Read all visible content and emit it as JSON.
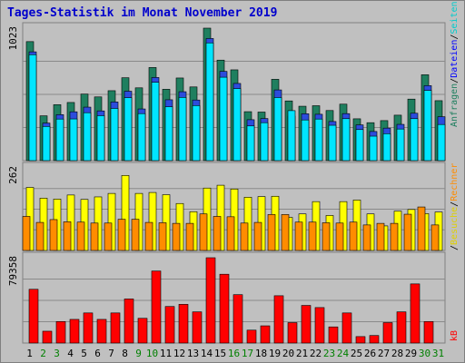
{
  "title": "Tages-Statistik im Monat November 2019",
  "chart_data": [
    {
      "type": "bar",
      "panel": "top",
      "categories": [
        "1",
        "2",
        "3",
        "4",
        "5",
        "6",
        "7",
        "8",
        "9",
        "10",
        "11",
        "12",
        "13",
        "14",
        "15",
        "16",
        "17",
        "18",
        "19",
        "20",
        "21",
        "22",
        "23",
        "24",
        "25",
        "26",
        "27",
        "28",
        "29",
        "30",
        "31"
      ],
      "ylim": [
        0,
        1023
      ],
      "ytick_label": "1023",
      "series": [
        {
          "name": "Anfragen",
          "color": "#1f7f5f",
          "values": [
            919,
            346,
            432,
            449,
            514,
            492,
            540,
            640,
            562,
            719,
            551,
            638,
            569,
            1023,
            776,
            701,
            378,
            375,
            628,
            461,
            420,
            424,
            387,
            436,
            323,
            293,
            309,
            351,
            475,
            663,
            463
          ]
        },
        {
          "name": "Dateien",
          "color": "#2c4cdc",
          "values": [
            861,
            311,
            376,
            398,
            434,
            405,
            474,
            557,
            420,
            663,
            491,
            553,
            489,
            964,
            710,
            617,
            337,
            346,
            567,
            365,
            383,
            379,
            323,
            384,
            297,
            246,
            272,
            301,
            387,
            600,
            360
          ]
        },
        {
          "name": "Seiten",
          "color": "#00e5ff",
          "values": [
            860,
            306,
            363,
            364,
            412,
            389,
            445,
            528,
            405,
            647,
            458,
            530,
            467,
            951,
            686,
            598,
            310,
            335,
            529,
            428,
            356,
            363,
            315,
            366,
            282,
            231,
            250,
            286,
            366,
            584,
            321
          ]
        }
      ]
    },
    {
      "type": "bar",
      "panel": "middle",
      "categories": [
        "1",
        "2",
        "3",
        "4",
        "5",
        "6",
        "7",
        "8",
        "9",
        "10",
        "11",
        "12",
        "13",
        "14",
        "15",
        "16",
        "17",
        "18",
        "19",
        "20",
        "21",
        "22",
        "23",
        "24",
        "25",
        "26",
        "27",
        "28",
        "29",
        "30",
        "31"
      ],
      "ylim": [
        0,
        262
      ],
      "ytick_label": "262",
      "series": [
        {
          "name": "Besuche",
          "color": "#ffff00",
          "values": [
            200,
            166,
            163,
            176,
            162,
            170,
            181,
            238,
            181,
            184,
            177,
            149,
            123,
            198,
            207,
            195,
            169,
            171,
            172,
            105,
            116,
            155,
            111,
            155,
            160,
            116,
            78,
            125,
            130,
            117,
            122
          ]
        },
        {
          "name": "Rechner",
          "color": "#ff8c00",
          "values": [
            108,
            89,
            98,
            91,
            90,
            87,
            87,
            99,
            99,
            89,
            88,
            86,
            86,
            116,
            108,
            107,
            87,
            89,
            114,
            114,
            90,
            90,
            88,
            87,
            90,
            81,
            86,
            86,
            115,
            138,
            81
          ]
        }
      ]
    },
    {
      "type": "bar",
      "panel": "bottom",
      "categories": [
        "1",
        "2",
        "3",
        "4",
        "5",
        "6",
        "7",
        "8",
        "9",
        "10",
        "11",
        "12",
        "13",
        "14",
        "15",
        "16",
        "17",
        "18",
        "19",
        "20",
        "21",
        "22",
        "23",
        "24",
        "25",
        "26",
        "27",
        "28",
        "29",
        "30",
        "31"
      ],
      "ylim": [
        0,
        79358
      ],
      "ytick_label": "79358",
      "series": [
        {
          "name": "kB",
          "color": "#ff0000",
          "values": [
            50000,
            11000,
            20000,
            22000,
            28000,
            22000,
            28000,
            41000,
            23000,
            67000,
            34000,
            36000,
            29000,
            79358,
            64000,
            45000,
            12000,
            16000,
            44000,
            19000,
            35000,
            33000,
            15000,
            28000,
            6000,
            7000,
            19000,
            29000,
            55000,
            20000,
            0
          ]
        }
      ]
    }
  ],
  "x_axis": {
    "labels": [
      "1",
      "2",
      "3",
      "4",
      "5",
      "6",
      "7",
      "8",
      "9",
      "10",
      "11",
      "12",
      "13",
      "14",
      "15",
      "16",
      "17",
      "18",
      "19",
      "20",
      "21",
      "22",
      "23",
      "24",
      "25",
      "26",
      "27",
      "28",
      "29",
      "30",
      "31"
    ],
    "weekend_days": [
      "2",
      "3",
      "9",
      "10",
      "16",
      "17",
      "23",
      "24",
      "30",
      "31"
    ],
    "weekday_color": "#000000",
    "weekend_color": "#008000"
  },
  "right_legend_top": [
    {
      "text": "Anfragen",
      "color": "#1f7f5f"
    },
    {
      "text": "/",
      "color": "#000000"
    },
    {
      "text": "Dateien",
      "color": "#0000ff"
    },
    {
      "text": "/",
      "color": "#000000"
    },
    {
      "text": "Seiten",
      "color": "#00cccc"
    }
  ],
  "right_legend_middle": [
    {
      "text": "/",
      "color": "#000000"
    },
    {
      "text": "Besuche",
      "color": "#e0d000"
    },
    {
      "text": "/",
      "color": "#000000"
    },
    {
      "text": "Rechner",
      "color": "#ff8c00"
    }
  ],
  "right_legend_bottom": [
    {
      "text": "kB",
      "color": "#ff0000"
    }
  ]
}
